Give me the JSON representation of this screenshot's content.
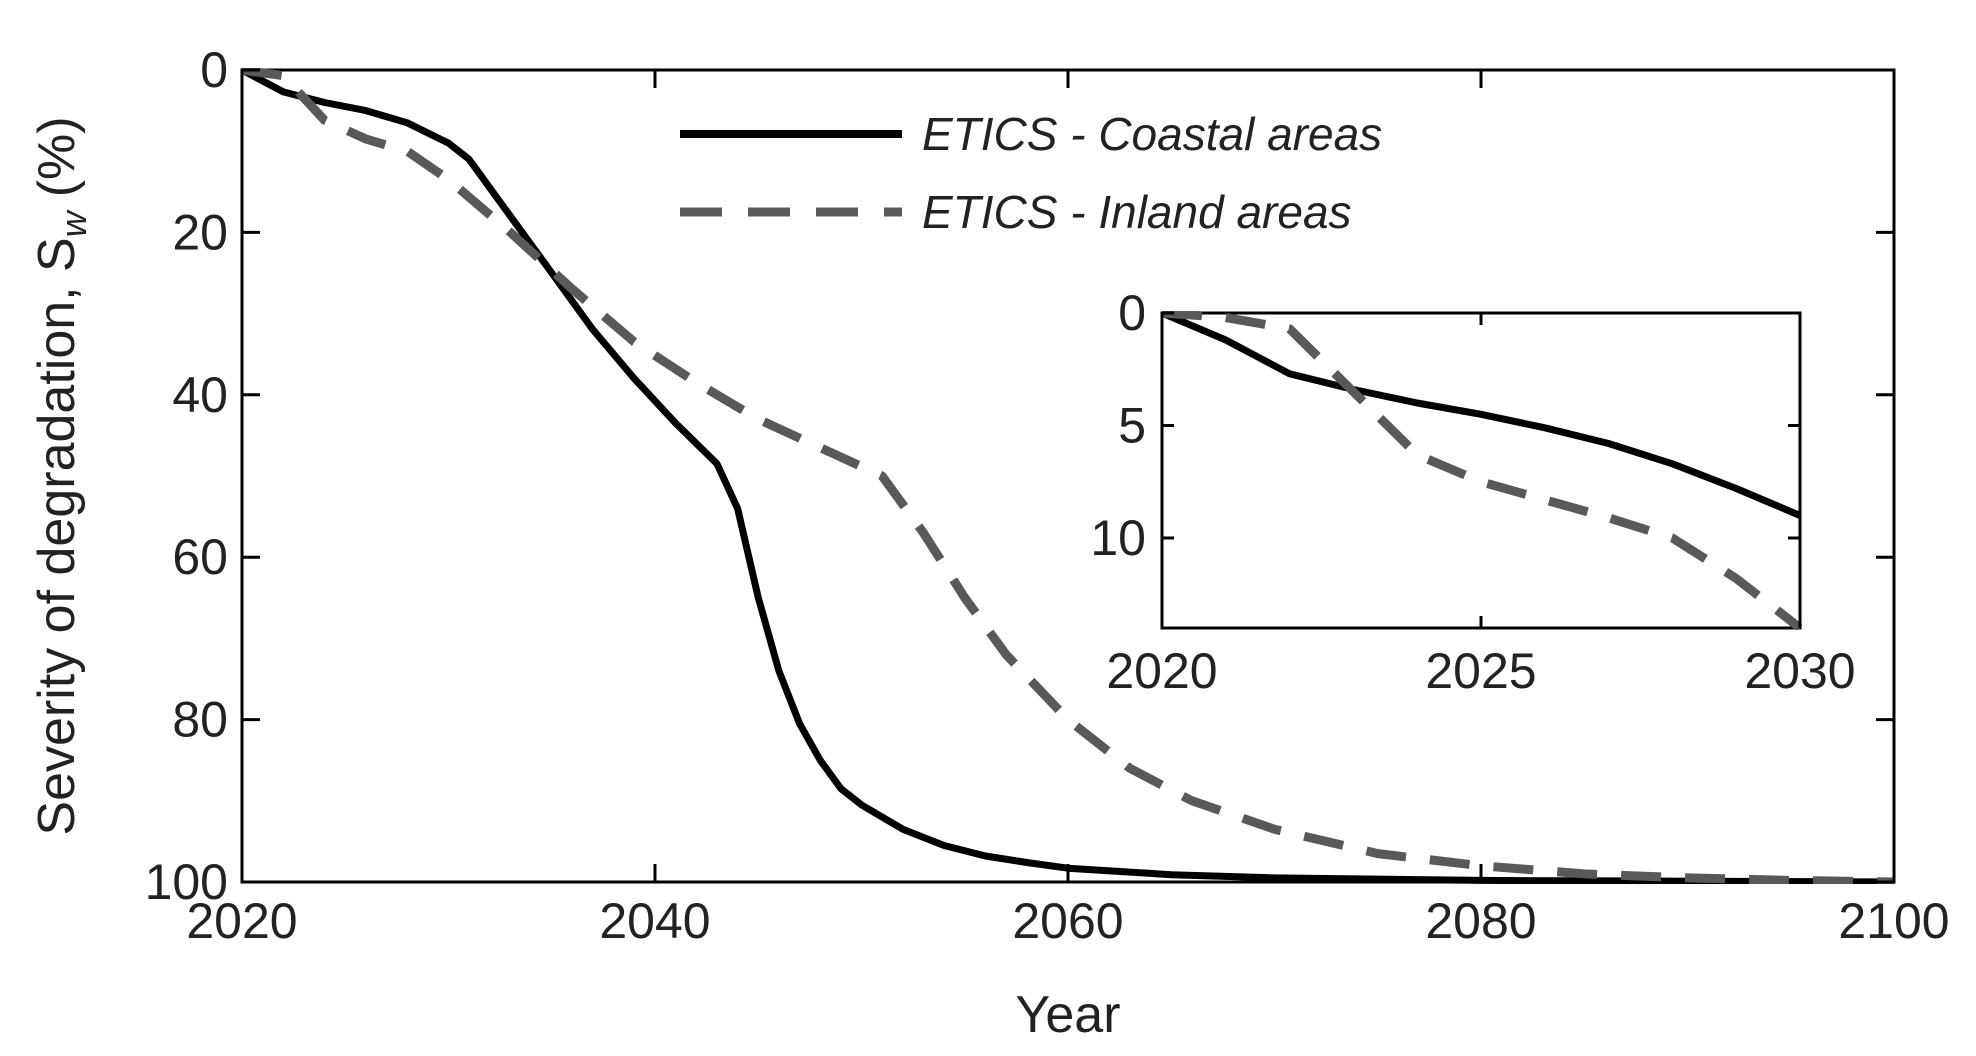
{
  "chart_data": [
    {
      "name": "main",
      "type": "line",
      "xlabel": "Year",
      "ylabel": "Severity of degradation, S",
      "ylabel_subscript": "w",
      "ylabel_unit": "(%)",
      "xlim": [
        2020,
        2100
      ],
      "ylim": [
        0,
        100
      ],
      "y_reversed": true,
      "grid": false,
      "xticks": [
        2020,
        2040,
        2060,
        2080,
        2100
      ],
      "yticks": [
        0,
        20,
        40,
        60,
        80,
        100
      ],
      "legend_position": "top-center",
      "series": [
        {
          "name": "ETICS - Coastal areas",
          "style": "solid",
          "color": "#000000",
          "x": [
            2020,
            2022,
            2024,
            2026,
            2028,
            2030,
            2031,
            2033,
            2035,
            2037,
            2039,
            2041,
            2043,
            2044,
            2045,
            2046,
            2047,
            2048,
            2049,
            2050,
            2052,
            2054,
            2056,
            2058,
            2060,
            2065,
            2070,
            2080,
            2090,
            2100
          ],
          "y": [
            0,
            2.7,
            4.0,
            5.0,
            6.5,
            9.0,
            11,
            18,
            25,
            32,
            38,
            43.5,
            48.5,
            54,
            65,
            74,
            80.5,
            85,
            88.5,
            90.5,
            93.5,
            95.5,
            96.8,
            97.6,
            98.3,
            99.1,
            99.5,
            99.8,
            99.9,
            100
          ]
        },
        {
          "name": "ETICS - Inland areas",
          "style": "dashed",
          "color": "#595959",
          "x": [
            2020,
            2022,
            2024,
            2026,
            2028,
            2030,
            2033,
            2036,
            2039,
            2042,
            2045,
            2048,
            2051,
            2053,
            2055,
            2057,
            2060,
            2063,
            2066,
            2070,
            2075,
            2080,
            2085,
            2090,
            2095,
            2100
          ],
          "y": [
            0,
            0.7,
            6.2,
            8.5,
            10,
            13.5,
            20,
            27,
            33.5,
            38.5,
            43,
            46.5,
            50,
            57,
            65,
            72,
            80,
            86,
            90,
            93.5,
            96.5,
            98,
            99,
            99.5,
            99.8,
            100
          ]
        }
      ]
    },
    {
      "name": "inset",
      "type": "line",
      "xlim": [
        2020,
        2030
      ],
      "ylim": [
        0,
        14
      ],
      "y_reversed": true,
      "grid": false,
      "xticks": [
        2020,
        2025,
        2030
      ],
      "yticks": [
        0,
        5,
        10
      ],
      "series": [
        {
          "name": "ETICS - Coastal areas",
          "style": "solid",
          "color": "#000000",
          "x": [
            2020,
            2021,
            2022,
            2023,
            2024,
            2025,
            2026,
            2027,
            2028,
            2029,
            2030
          ],
          "y": [
            0,
            1.2,
            2.7,
            3.4,
            4.0,
            4.5,
            5.1,
            5.8,
            6.7,
            7.8,
            9.0
          ]
        },
        {
          "name": "ETICS - Inland areas",
          "style": "dashed",
          "color": "#595959",
          "x": [
            2020,
            2021,
            2022,
            2023,
            2024,
            2025,
            2026,
            2027,
            2028,
            2029,
            2030
          ],
          "y": [
            0,
            0.2,
            0.7,
            3.5,
            6.3,
            7.5,
            8.3,
            9.1,
            10.0,
            11.8,
            14.0
          ]
        }
      ]
    }
  ]
}
